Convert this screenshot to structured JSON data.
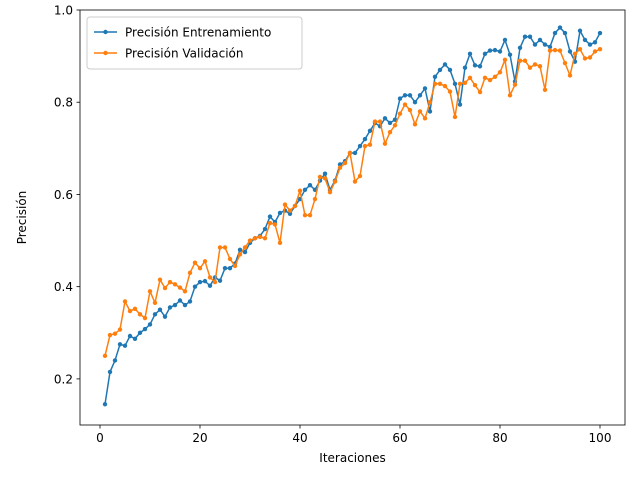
{
  "chart_data": {
    "type": "line",
    "title": "",
    "xlabel": "Iteraciones",
    "ylabel": "Precisión",
    "xlim": [
      -4,
      105
    ],
    "ylim": [
      0.1,
      1.0
    ],
    "xticks": [
      0,
      20,
      40,
      60,
      80,
      100
    ],
    "yticks": [
      0.2,
      0.4,
      0.6,
      0.8,
      1.0
    ],
    "xtick_labels": [
      "0",
      "20",
      "40",
      "60",
      "80",
      "100"
    ],
    "ytick_labels": [
      "0.2",
      "0.4",
      "0.6",
      "0.8",
      "1.0"
    ],
    "grid": false,
    "legend_position": "top-left",
    "x": [
      1,
      2,
      3,
      4,
      5,
      6,
      7,
      8,
      9,
      10,
      11,
      12,
      13,
      14,
      15,
      16,
      17,
      18,
      19,
      20,
      21,
      22,
      23,
      24,
      25,
      26,
      27,
      28,
      29,
      30,
      31,
      32,
      33,
      34,
      35,
      36,
      37,
      38,
      39,
      40,
      41,
      42,
      43,
      44,
      45,
      46,
      47,
      48,
      49,
      50,
      51,
      52,
      53,
      54,
      55,
      56,
      57,
      58,
      59,
      60,
      61,
      62,
      63,
      64,
      65,
      66,
      67,
      68,
      69,
      70,
      71,
      72,
      73,
      74,
      75,
      76,
      77,
      78,
      79,
      80,
      81,
      82,
      83,
      84,
      85,
      86,
      87,
      88,
      89,
      90,
      91,
      92,
      93,
      94,
      95,
      96,
      97,
      98,
      99,
      100
    ],
    "series": [
      {
        "name": "Precisión Entrenamiento",
        "color": "#1f77b4",
        "values": [
          0.145,
          0.215,
          0.24,
          0.275,
          0.272,
          0.293,
          0.287,
          0.3,
          0.308,
          0.318,
          0.34,
          0.35,
          0.335,
          0.355,
          0.36,
          0.37,
          0.36,
          0.368,
          0.4,
          0.41,
          0.412,
          0.402,
          0.42,
          0.413,
          0.44,
          0.44,
          0.45,
          0.48,
          0.475,
          0.495,
          0.505,
          0.51,
          0.525,
          0.552,
          0.54,
          0.56,
          0.565,
          0.558,
          0.575,
          0.59,
          0.61,
          0.62,
          0.61,
          0.63,
          0.645,
          0.61,
          0.63,
          0.665,
          0.672,
          0.69,
          0.69,
          0.705,
          0.72,
          0.738,
          0.755,
          0.748,
          0.765,
          0.755,
          0.762,
          0.808,
          0.815,
          0.815,
          0.8,
          0.815,
          0.83,
          0.78,
          0.855,
          0.87,
          0.882,
          0.87,
          0.84,
          0.795,
          0.875,
          0.905,
          0.88,
          0.878,
          0.905,
          0.912,
          0.913,
          0.91,
          0.935,
          0.903,
          0.845,
          0.918,
          0.942,
          0.942,
          0.925,
          0.935,
          0.925,
          0.92,
          0.95,
          0.962,
          0.95,
          0.91,
          0.888,
          0.955,
          0.935,
          0.925,
          0.93,
          0.95
        ]
      },
      {
        "name": "Precisión Validación",
        "color": "#ff7f0e",
        "values": [
          0.25,
          0.295,
          0.298,
          0.307,
          0.368,
          0.347,
          0.352,
          0.34,
          0.332,
          0.39,
          0.365,
          0.415,
          0.397,
          0.41,
          0.405,
          0.398,
          0.39,
          0.43,
          0.452,
          0.44,
          0.455,
          0.42,
          0.41,
          0.485,
          0.485,
          0.46,
          0.445,
          0.47,
          0.485,
          0.5,
          0.505,
          0.508,
          0.505,
          0.538,
          0.535,
          0.495,
          0.578,
          0.565,
          0.575,
          0.608,
          0.555,
          0.555,
          0.59,
          0.638,
          0.635,
          0.605,
          0.628,
          0.658,
          0.668,
          0.69,
          0.628,
          0.64,
          0.705,
          0.708,
          0.758,
          0.758,
          0.71,
          0.735,
          0.75,
          0.775,
          0.795,
          0.783,
          0.752,
          0.78,
          0.765,
          0.8,
          0.84,
          0.84,
          0.835,
          0.823,
          0.768,
          0.84,
          0.842,
          0.853,
          0.837,
          0.822,
          0.853,
          0.848,
          0.855,
          0.865,
          0.892,
          0.815,
          0.838,
          0.89,
          0.89,
          0.875,
          0.882,
          0.878,
          0.827,
          0.912,
          0.913,
          0.912,
          0.885,
          0.858,
          0.905,
          0.915,
          0.895,
          0.897,
          0.91,
          0.915
        ]
      }
    ]
  }
}
